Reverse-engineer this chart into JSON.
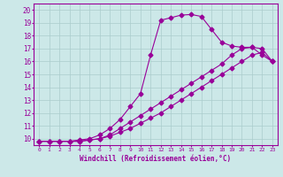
{
  "background_color": "#cce8e8",
  "grid_color": "#aacccc",
  "line_color": "#990099",
  "marker": "D",
  "xlabel": "Windchill (Refroidissement éolien,°C)",
  "xlim": [
    -0.5,
    23.5
  ],
  "ylim": [
    9.5,
    20.5
  ],
  "xtick_labels": [
    "0",
    "1",
    "2",
    "3",
    "4",
    "5",
    "6",
    "7",
    "8",
    "9",
    "10",
    "11",
    "12",
    "13",
    "14",
    "15",
    "16",
    "17",
    "18",
    "19",
    "20",
    "21",
    "22",
    "23"
  ],
  "ytick_labels": [
    "10",
    "11",
    "12",
    "13",
    "14",
    "15",
    "16",
    "17",
    "18",
    "19",
    "20"
  ],
  "line1_x": [
    0,
    1,
    2,
    3,
    4,
    5,
    6,
    7,
    8,
    9,
    10,
    11,
    12,
    13,
    14,
    15,
    16,
    17,
    18,
    19,
    20,
    21,
    22,
    23
  ],
  "line1_y": [
    9.8,
    9.8,
    9.8,
    9.8,
    9.8,
    9.9,
    10.0,
    10.2,
    10.5,
    10.8,
    11.2,
    11.6,
    12.0,
    12.5,
    13.0,
    13.5,
    14.0,
    14.5,
    15.0,
    15.5,
    16.0,
    16.5,
    16.7,
    16.0
  ],
  "line2_x": [
    0,
    1,
    2,
    3,
    4,
    5,
    6,
    7,
    8,
    9,
    10,
    11,
    12,
    13,
    14,
    15,
    16,
    17,
    18,
    19,
    20,
    21,
    22,
    23
  ],
  "line2_y": [
    9.8,
    9.8,
    9.8,
    9.8,
    9.8,
    9.9,
    10.0,
    10.3,
    10.8,
    11.3,
    11.8,
    12.3,
    12.8,
    13.3,
    13.8,
    14.3,
    14.8,
    15.3,
    15.8,
    16.5,
    17.0,
    17.1,
    17.0,
    16.0
  ],
  "line3_x": [
    0,
    1,
    2,
    3,
    4,
    5,
    6,
    7,
    8,
    9,
    10,
    11,
    12,
    13,
    14,
    15,
    16,
    17,
    18,
    19,
    20,
    21,
    22,
    23
  ],
  "line3_y": [
    9.8,
    9.8,
    9.8,
    9.8,
    9.9,
    10.0,
    10.3,
    10.8,
    11.5,
    12.5,
    13.5,
    16.5,
    19.2,
    19.4,
    19.6,
    19.65,
    19.5,
    18.5,
    17.5,
    17.2,
    17.1,
    17.1,
    16.5,
    16.0
  ]
}
